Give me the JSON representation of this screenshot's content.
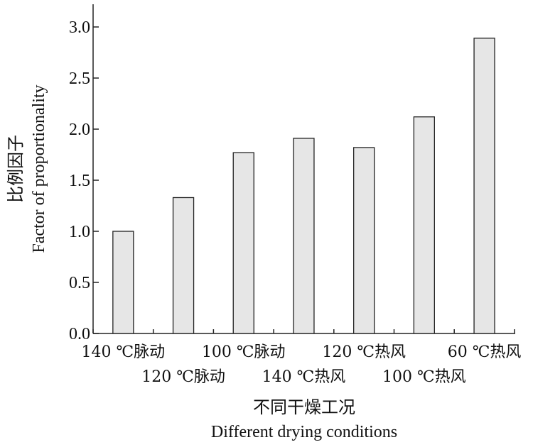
{
  "chart_data": {
    "type": "bar",
    "categories": [
      "140 ℃脉动",
      "120 ℃脉动",
      "100 ℃脉动",
      "140 ℃热风",
      "120 ℃热风",
      "100 ℃热风",
      "60 ℃热风"
    ],
    "values": [
      1.0,
      1.33,
      1.77,
      1.91,
      1.82,
      2.12,
      2.89
    ],
    "ylabel_cn": "比例因子",
    "ylabel_en": "Factor of proportionality",
    "xlabel_cn": "不同干燥工况",
    "xlabel_en": "Different drying conditions",
    "ylim": [
      0,
      3.0
    ],
    "yticks": [
      0.0,
      0.5,
      1.0,
      1.5,
      2.0,
      2.5,
      3.0
    ],
    "ytick_labels": [
      "0.0",
      "0.5",
      "1.0",
      "1.5",
      "2.0",
      "2.5",
      "3.0"
    ],
    "grid": false,
    "colors": {
      "bar_fill": "#e6e6e6",
      "bar_stroke": "#222222",
      "axis": "#222222"
    }
  }
}
